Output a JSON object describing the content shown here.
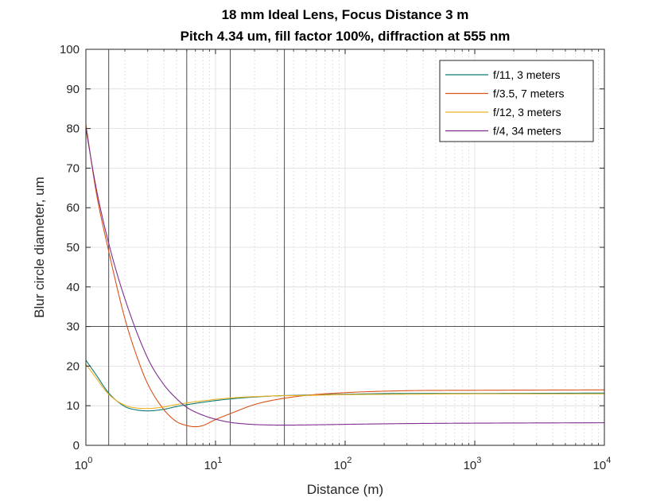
{
  "chart_data": {
    "type": "line",
    "title": [
      "18 mm Ideal Lens, Focus Distance 3 m",
      "Pitch 4.34 um, fill factor 100%, diffraction at 555 nm"
    ],
    "xlabel": "Distance (m)",
    "ylabel": "Blur circle diameter, um",
    "xscale": "log",
    "xlim": [
      1,
      10000
    ],
    "ylim": [
      0,
      100
    ],
    "grid": true,
    "legend_position": "top-right",
    "xticks": [
      {
        "base": "10",
        "exp": "0"
      },
      {
        "base": "10",
        "exp": "1"
      },
      {
        "base": "10",
        "exp": "2"
      },
      {
        "base": "10",
        "exp": "3"
      },
      {
        "base": "10",
        "exp": "4"
      }
    ],
    "yticks": [
      "0",
      "10",
      "20",
      "30",
      "40",
      "50",
      "60",
      "70",
      "80",
      "90",
      "100"
    ],
    "reference_lines": {
      "vertical_x": [
        1.5,
        6,
        13,
        34
      ],
      "horizontal_y": [
        30
      ]
    },
    "series": [
      {
        "name": "f/11, 3 meters",
        "color": "#0b7a75",
        "x": [
          1,
          1.2,
          1.5,
          2,
          2.5,
          3,
          4,
          5,
          7,
          10,
          15,
          20,
          30,
          50,
          100,
          300,
          1000,
          10000
        ],
        "y": [
          21.5,
          17.8,
          13.2,
          9.8,
          8.9,
          8.7,
          9.1,
          9.8,
          10.6,
          11.3,
          11.9,
          12.2,
          12.5,
          12.7,
          12.9,
          13.1,
          13.1,
          13.2
        ]
      },
      {
        "name": "f/3.5, 7 meters",
        "color": "#d95319",
        "x": [
          1,
          1.2,
          1.5,
          2,
          2.5,
          3,
          4,
          5,
          6,
          7,
          8,
          10,
          13,
          20,
          30,
          50,
          100,
          300,
          1000,
          10000
        ],
        "y": [
          81,
          64,
          49,
          32,
          22,
          15.5,
          9,
          6,
          5,
          4.7,
          5,
          6.5,
          8,
          10.3,
          11.6,
          12.6,
          13.3,
          13.8,
          13.9,
          14
        ]
      },
      {
        "name": "f/12, 3 meters",
        "color": "#edb120",
        "x": [
          1,
          1.2,
          1.5,
          2,
          2.5,
          3,
          4,
          5,
          7,
          10,
          15,
          20,
          30,
          50,
          100,
          300,
          1000,
          10000
        ],
        "y": [
          20.5,
          17,
          12.9,
          10.1,
          9.4,
          9.3,
          9.7,
          10.3,
          11,
          11.6,
          12.1,
          12.3,
          12.5,
          12.6,
          12.8,
          12.9,
          13,
          13
        ]
      },
      {
        "name": "f/4, 34 meters",
        "color": "#7e2f8e",
        "x": [
          1,
          1.2,
          1.5,
          2,
          3,
          4,
          5,
          6,
          8,
          10,
          13,
          17,
          20,
          25,
          34,
          50,
          100,
          300,
          1000,
          10000
        ],
        "y": [
          80,
          65,
          51,
          37,
          22,
          15.3,
          11.8,
          9.6,
          7.6,
          6.6,
          5.8,
          5.4,
          5.25,
          5.15,
          5.1,
          5.15,
          5.3,
          5.5,
          5.6,
          5.7
        ]
      }
    ]
  }
}
